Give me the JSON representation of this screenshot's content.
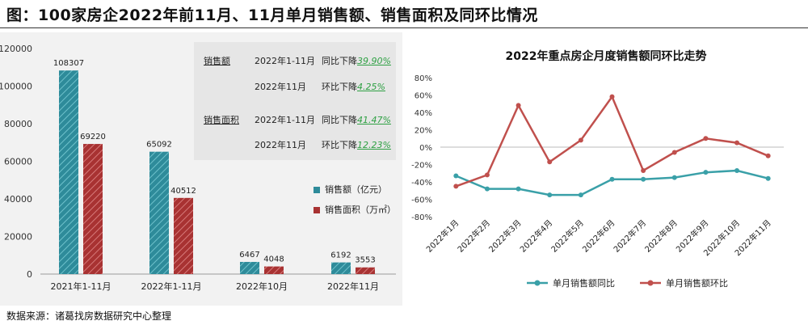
{
  "header": {
    "title": "图：100家房企2022年前11月、11月单月销售额、销售面积及同环比情况"
  },
  "source": "数据来源：诸葛找房数据研究中心整理",
  "info_box": {
    "rows": [
      {
        "metric": "销售额",
        "period": "2022年1-11月",
        "change": "同比下降",
        "value": "39.90%"
      },
      {
        "metric": "",
        "period": "2022年11月",
        "change": "环比下降",
        "value": "4.25%"
      },
      {
        "metric": "销售面积",
        "period": "2022年1-11月",
        "change": "同比下降",
        "value": "41.47%"
      },
      {
        "metric": "",
        "period": "2022年11月",
        "change": "环比下降",
        "value": "12.23%"
      }
    ]
  },
  "colors": {
    "sales_amount": "#2e8b9a",
    "sales_area": "#a83232",
    "line_yoy": "#3aa0a8",
    "line_mom": "#c0504d",
    "highlight_value": "#2ea043"
  },
  "chart_data": [
    {
      "type": "bar",
      "categories": [
        "2021年1-11月",
        "2022年1-11月",
        "2022年10月",
        "2022年11月"
      ],
      "series": [
        {
          "name": "销售额（亿元）",
          "values": [
            108307,
            65092,
            6467,
            6192
          ]
        },
        {
          "name": "销售面积（万㎡）",
          "values": [
            69220,
            40512,
            4048,
            3553
          ]
        }
      ],
      "ylim": [
        0,
        120000
      ],
      "yticks": [
        0,
        20000,
        40000,
        60000,
        80000,
        100000,
        120000
      ],
      "ytick_labels": [
        "0",
        "20000",
        "40000",
        "60000",
        "80000",
        "100000",
        "120000"
      ],
      "legend_position": "right"
    },
    {
      "type": "line",
      "title": "2022年重点房企月度销售额同环比走势",
      "categories": [
        "2022年1月",
        "2022年2月",
        "2022年3月",
        "2022年4月",
        "2022年5月",
        "2022年6月",
        "2022年7月",
        "2022年8月",
        "2022年9月",
        "2022年10月",
        "2022年11月"
      ],
      "series": [
        {
          "name": "单月销售额同比",
          "values": [
            -33,
            -48,
            -48,
            -55,
            -55,
            -37,
            -37,
            -35,
            -29,
            -27,
            -36
          ]
        },
        {
          "name": "单月销售额环比",
          "values": [
            -45,
            -32,
            48,
            -17,
            8,
            58,
            -27,
            -6,
            10,
            5,
            -10
          ]
        }
      ],
      "ylim": [
        -80,
        80
      ],
      "yticks": [
        -80,
        -60,
        -40,
        -20,
        0,
        20,
        40,
        60,
        80
      ],
      "ytick_labels": [
        "-80%",
        "-60%",
        "-40%",
        "-20%",
        "0%",
        "20%",
        "40%",
        "60%",
        "80%"
      ],
      "legend_position": "bottom"
    }
  ]
}
